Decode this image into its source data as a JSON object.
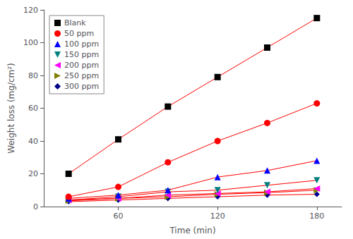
{
  "chart_data": {
    "type": "line",
    "x": [
      30,
      60,
      90,
      120,
      150,
      180
    ],
    "series": [
      {
        "name": "Blank",
        "color": "black",
        "marker": "square",
        "values": [
          20,
          41,
          61,
          79,
          97,
          115
        ]
      },
      {
        "name": "50 ppm",
        "color": "red",
        "marker": "circle",
        "values": [
          6,
          12,
          27,
          40,
          51,
          63
        ]
      },
      {
        "name": "100 ppm",
        "color": "blue",
        "marker": "triangle-up",
        "values": [
          5,
          7,
          10,
          18,
          22,
          28
        ]
      },
      {
        "name": "150 ppm",
        "color": "#008080",
        "marker": "triangle-down",
        "values": [
          4,
          6,
          9,
          10,
          13,
          16
        ]
      },
      {
        "name": "200 ppm",
        "color": "magenta",
        "marker": "triangle-left",
        "values": [
          4,
          5,
          7,
          8,
          9,
          11
        ]
      },
      {
        "name": "250 ppm",
        "color": "#808000",
        "marker": "triangle-right",
        "values": [
          3.5,
          5,
          6,
          7.5,
          8.5,
          10
        ]
      },
      {
        "name": "300 ppm",
        "color": "#00008B",
        "marker": "diamond",
        "values": [
          3,
          4,
          5,
          6,
          7,
          7.5
        ]
      }
    ],
    "color": "red",
    "xlabel": "Time (min)",
    "ylabel": "Weight loss (mg/cm²)",
    "xlim": [
      15,
      195
    ],
    "ylim": [
      0,
      120
    ],
    "xticks": [
      60,
      120,
      180
    ],
    "yticks": [
      0,
      20,
      40,
      60,
      80,
      100,
      120
    ],
    "legend": "upper left",
    "grid": false
  }
}
